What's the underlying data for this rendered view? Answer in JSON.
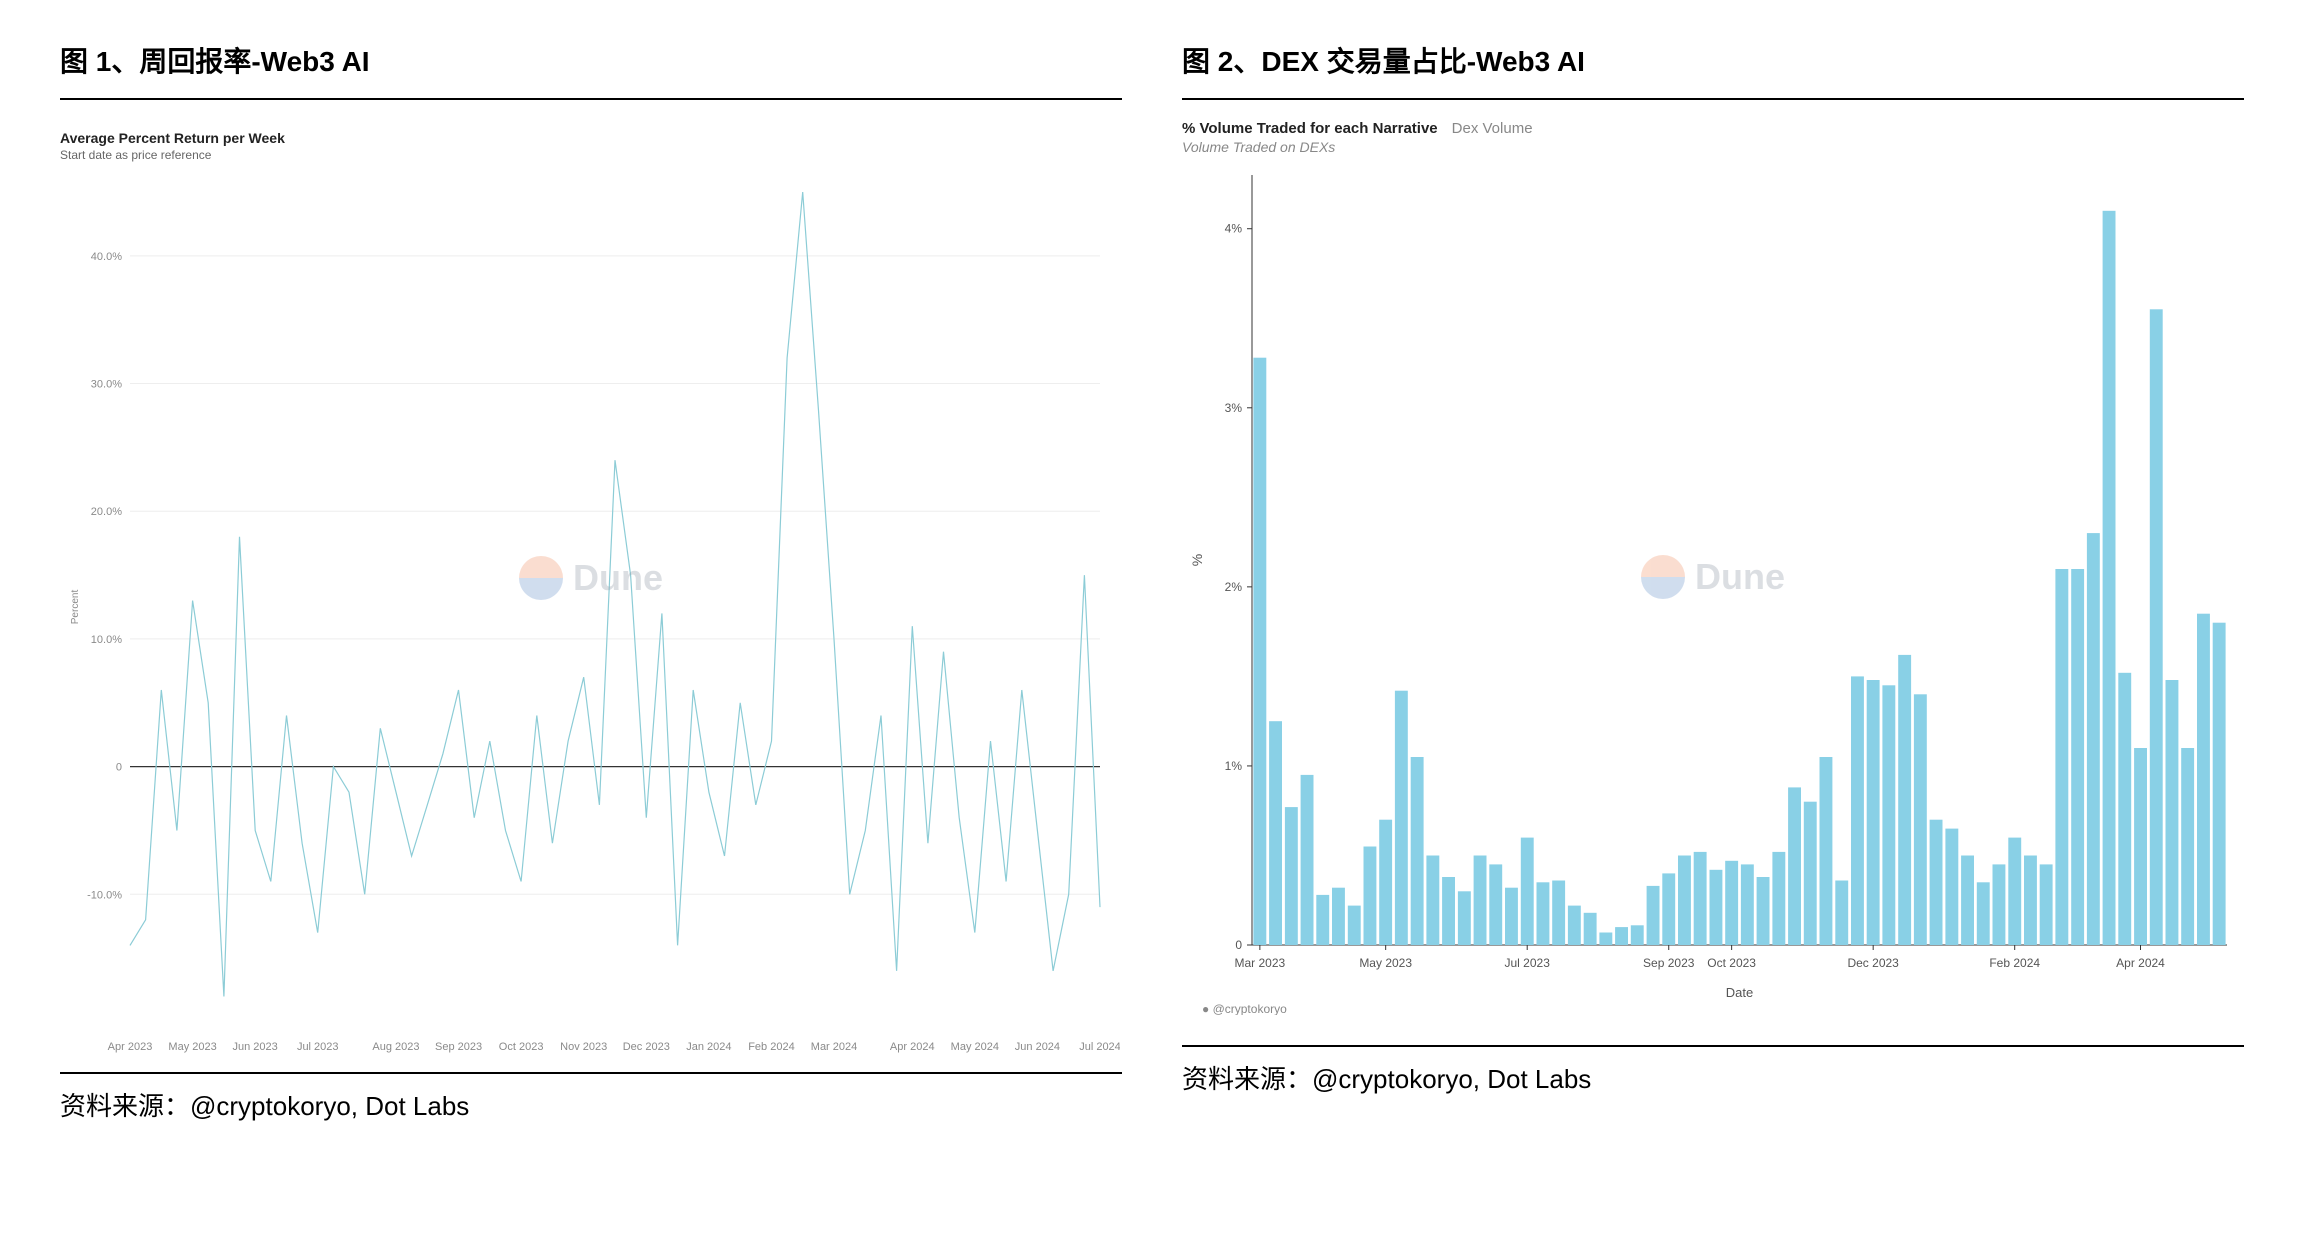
{
  "left": {
    "figure_label": "图 1、周回报率-Web3 AI",
    "source_label": "资料来源：@cryptokoryo, Dot Labs",
    "chart": {
      "type": "line",
      "title": "Average Percent Return per Week",
      "subtitle": "Start date as price reference",
      "watermark": "Dune",
      "line_color": "#8cccd6",
      "line_width": 1.2,
      "zero_line_color": "#333333",
      "grid_color": "#eeeeee",
      "axis_text_color": "#8a8a8a",
      "axis_font_size": 11,
      "ylabel": "Percent",
      "ylabel_font_size": 10,
      "ylim": [
        -20,
        45
      ],
      "yticks": [
        -10,
        0,
        10,
        20,
        30,
        40
      ],
      "ytick_labels": [
        "-10.0%",
        "0",
        "10.0%",
        "20.0%",
        "30.0%",
        "40.0%"
      ],
      "x_labels": [
        "Apr 2023",
        "May 2023",
        "Jun 2023",
        "Jul 2023",
        "Aug 2023",
        "Sep 2023",
        "Oct 2023",
        "Nov 2023",
        "Dec 2023",
        "Jan 2024",
        "Feb 2024",
        "Mar 2024",
        "Apr 2024",
        "May 2024",
        "Jun 2024",
        "Jul 2024"
      ],
      "values": [
        -14,
        -12,
        6,
        -5,
        13,
        5,
        -18,
        18,
        -5,
        -9,
        4,
        -6,
        -13,
        0,
        -2,
        -10,
        3,
        -2,
        -7,
        -3,
        1,
        6,
        -4,
        2,
        -5,
        -9,
        4,
        -6,
        2,
        7,
        -3,
        24,
        15,
        -4,
        12,
        -14,
        6,
        -2,
        -7,
        5,
        -3,
        2,
        32,
        45,
        28,
        10,
        -10,
        -5,
        4,
        -16,
        11,
        -6,
        9,
        -4,
        -13,
        2,
        -9,
        6,
        -5,
        -16,
        -10,
        15,
        -11
      ]
    }
  },
  "right": {
    "figure_label": "图 2、DEX 交易量占比-Web3 AI",
    "source_label": "资料来源：@cryptokoryo, Dot Labs",
    "chart": {
      "type": "bar",
      "title_a": "% Volume Traded for each Narrative",
      "title_b": "Dex Volume",
      "title_c": "Volume Traded on DEXs",
      "credit": "@cryptokoryo",
      "watermark": "Dune",
      "bar_color": "#89d0e6",
      "axis_color": "#333333",
      "axis_text_color": "#555555",
      "axis_font_size": 12,
      "xlabel": "Date",
      "ylabel": "%",
      "ylim": [
        0,
        4.3
      ],
      "yticks": [
        0,
        1,
        2,
        3,
        4
      ],
      "ytick_labels": [
        "0",
        "1%",
        "2%",
        "3%",
        "4%"
      ],
      "x_tick_labels": [
        "Mar 2023",
        "May 2023",
        "Jul 2023",
        "Sep 2023",
        "Oct 2023",
        "Dec 2023",
        "Feb 2024",
        "Apr 2024"
      ],
      "x_tick_positions": [
        0,
        8,
        17,
        26,
        30,
        39,
        48,
        56
      ],
      "values": [
        3.28,
        1.25,
        0.77,
        0.95,
        0.28,
        0.32,
        0.22,
        0.55,
        0.7,
        1.42,
        1.05,
        0.5,
        0.38,
        0.3,
        0.5,
        0.45,
        0.32,
        0.6,
        0.35,
        0.36,
        0.22,
        0.18,
        0.07,
        0.1,
        0.11,
        0.33,
        0.4,
        0.5,
        0.52,
        0.42,
        0.47,
        0.45,
        0.38,
        0.52,
        0.88,
        0.8,
        1.05,
        0.36,
        1.5,
        1.48,
        1.45,
        1.62,
        1.4,
        0.7,
        0.65,
        0.5,
        0.35,
        0.45,
        0.6,
        0.5,
        0.45,
        2.1,
        2.1,
        2.3,
        4.1,
        1.52,
        1.1,
        3.55,
        1.48,
        1.1,
        1.85,
        1.8
      ]
    }
  }
}
